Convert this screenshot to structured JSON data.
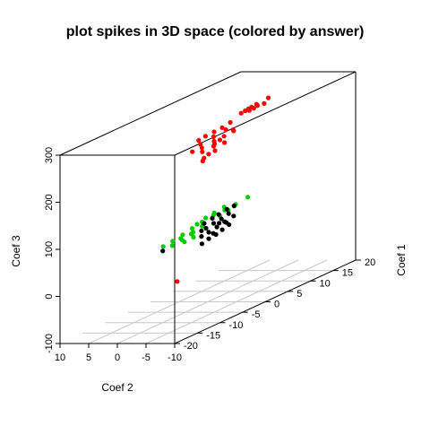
{
  "chart_data": {
    "type": "scatter",
    "title": "plot spikes in  3D space (colored by answer)",
    "xlabel": "Coef 1",
    "ylabel": "Coef 2",
    "zlabel": "Coef 3",
    "xlim": [
      -20,
      20
    ],
    "ylim": [
      -10,
      10
    ],
    "zlim": [
      -100,
      300
    ],
    "x_ticks": [
      {
        "v": -20,
        "label": "-20"
      },
      {
        "v": -15,
        "label": "-15"
      },
      {
        "v": -10,
        "label": "-10"
      },
      {
        "v": -5,
        "label": "-5"
      },
      {
        "v": 0,
        "label": "0"
      },
      {
        "v": 5,
        "label": "5"
      },
      {
        "v": 10,
        "label": "10"
      },
      {
        "v": 15,
        "label": "15"
      },
      {
        "v": 20,
        "label": "20"
      }
    ],
    "y_ticks": [
      {
        "v": 10,
        "label": "10"
      },
      {
        "v": 5,
        "label": "5"
      },
      {
        "v": 0,
        "label": "0"
      },
      {
        "v": -5,
        "label": "-5"
      },
      {
        "v": -10,
        "label": "-10"
      }
    ],
    "z_ticks": [
      {
        "v": -100,
        "label": "-100"
      },
      {
        "v": 0,
        "label": "0"
      },
      {
        "v": 100,
        "label": "100"
      },
      {
        "v": 200,
        "label": "200"
      },
      {
        "v": 300,
        "label": "300"
      }
    ],
    "grid": "floor",
    "series": [
      {
        "color": "#ff0000",
        "points": [
          [
            -1,
            -6.6,
            305
          ],
          [
            -0.1,
            -6.6,
            306
          ],
          [
            0.6,
            -6.6,
            307
          ],
          [
            1.3,
            -6.6,
            308
          ],
          [
            2.4,
            -6.6,
            309
          ],
          [
            5,
            -6.6,
            311
          ],
          [
            2.6,
            -6.6,
            305
          ],
          [
            4.1,
            -6.6,
            303
          ],
          [
            1.8,
            -6.6,
            303
          ],
          [
            0.8,
            -6.6,
            303
          ],
          [
            -9.5,
            -5.9,
            285
          ],
          [
            -8,
            -5.9,
            287
          ],
          [
            -6.1,
            -5.9,
            288
          ],
          [
            -4.3,
            -5.9,
            289
          ],
          [
            -2.5,
            -5.9,
            292
          ],
          [
            -9.1,
            -5.9,
            275
          ],
          [
            -6.2,
            -5.9,
            278
          ],
          [
            -3.5,
            -5.9,
            281
          ],
          [
            -1.9,
            -5.9,
            274
          ],
          [
            -10.9,
            -5.9,
            267
          ],
          [
            -8.8,
            -5.9,
            266
          ],
          [
            -6.1,
            -5.9,
            268
          ],
          [
            -3.9,
            -5.9,
            269
          ],
          [
            -1.8,
            -5.9,
            271
          ],
          [
            -8.7,
            -5.9,
            257
          ],
          [
            -6.2,
            -5.9,
            258
          ],
          [
            -3.8,
            -5.9,
            255
          ],
          [
            -8.3,
            -5.9,
            242
          ],
          [
            -5.9,
            -5.9,
            247
          ],
          [
            -8.6,
            -5.9,
            237
          ],
          [
            -7.3,
            -5.9,
            246
          ],
          [
            -6,
            -5.9,
            262
          ],
          [
            -4.8,
            -5.9,
            265
          ],
          [
            -11.7,
            -3.9,
            -5
          ]
        ]
      },
      {
        "color": "#00cd00",
        "points": [
          [
            -15.7,
            -4.6,
            87
          ],
          [
            -13.6,
            -4.6,
            89
          ],
          [
            -11.4,
            -4.6,
            93
          ],
          [
            -9.3,
            -4.6,
            97
          ],
          [
            -7.1,
            -4.6,
            101
          ],
          [
            -4.6,
            -4.6,
            104
          ],
          [
            -2.1,
            -4.6,
            104
          ],
          [
            0.3,
            -4.6,
            106
          ],
          [
            3,
            -4.6,
            109
          ],
          [
            -11.8,
            -4.6,
            87
          ],
          [
            -9.1,
            -4.6,
            88
          ],
          [
            -7.1,
            -4.6,
            92
          ],
          [
            -6.3,
            -4.6,
            106
          ],
          [
            -4.4,
            -4.6,
            108
          ],
          [
            -2.2,
            -4.6,
            111
          ],
          [
            -13.7,
            -4.6,
            80
          ],
          [
            -11.5,
            -4.6,
            82
          ],
          [
            -9.5,
            -4.6,
            86
          ],
          [
            -11,
            -4.6,
            76
          ],
          [
            -9,
            -4.6,
            77
          ],
          [
            -1.3,
            -4.6,
            100
          ],
          [
            -3.2,
            -4.6,
            97
          ],
          [
            -8.2,
            -4.6,
            101
          ]
        ]
      },
      {
        "color": "#000000",
        "points": [
          [
            -6.5,
            -4.1,
            52
          ],
          [
            -5,
            -4.1,
            56
          ],
          [
            -3.4,
            -4.1,
            58
          ],
          [
            -2,
            -4.1,
            62
          ],
          [
            -0.5,
            -4.1,
            66
          ],
          [
            -6.6,
            -4.1,
            68
          ],
          [
            -5,
            -4.1,
            70
          ],
          [
            -3.2,
            -4.1,
            73
          ],
          [
            -1.5,
            -4.1,
            77
          ],
          [
            0.5,
            -4.1,
            80
          ],
          [
            -5.6,
            -4.1,
            81
          ],
          [
            -3.9,
            -4.1,
            84
          ],
          [
            -2.2,
            -4.1,
            86
          ],
          [
            -0.6,
            -4.1,
            90
          ],
          [
            -4.2,
            -4.1,
            96
          ],
          [
            -2.8,
            -4.1,
            98
          ],
          [
            -1,
            -4.1,
            101
          ],
          [
            0.6,
            -4.1,
            101
          ],
          [
            -6,
            -4.1,
            93
          ],
          [
            -1.1,
            -4.1,
            73
          ],
          [
            -2.7,
            -4.1,
            79
          ],
          [
            -6.6,
            -4.1,
            80
          ],
          [
            -4,
            -4.1,
            63
          ],
          [
            -15.8,
            -4.6,
            78
          ]
        ]
      }
    ]
  }
}
